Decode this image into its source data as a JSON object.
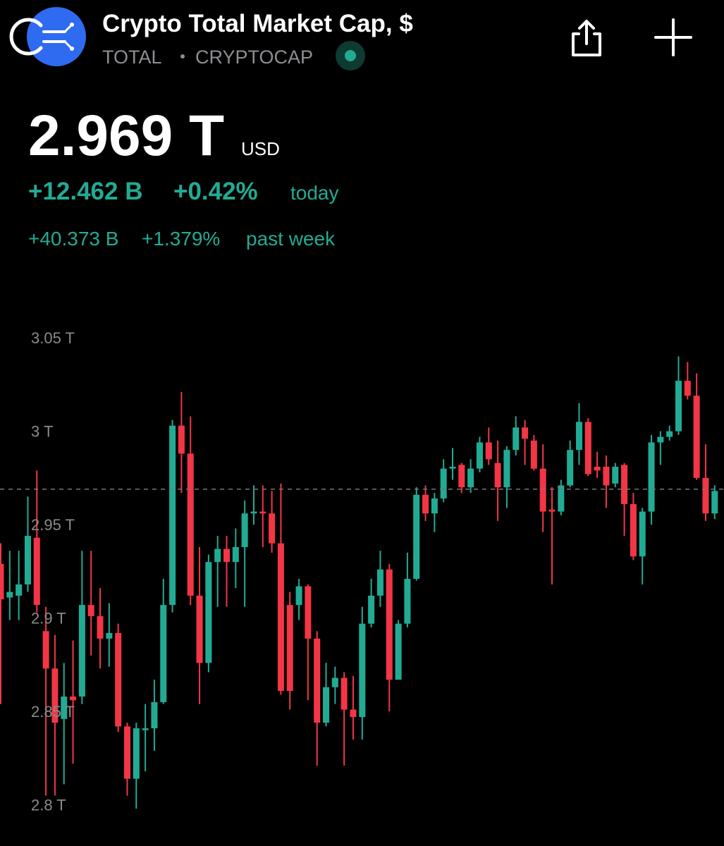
{
  "header": {
    "title": "Crypto Total Market Cap, $",
    "symbol": "TOTAL",
    "exchange": "CRYPTOCAP",
    "price": "2.969 T",
    "currency": "USD",
    "change_today": "+12.462 B",
    "change_today_pct": "+0.42%",
    "today_label": "today",
    "change_week": "+40.373 B",
    "change_week_pct": "+1.379%",
    "week_label": "past week"
  },
  "chart_data": {
    "type": "candlestick",
    "up_color": "#22ab94",
    "down_color": "#f23645",
    "ylim": [
      2.778,
      3.061
    ],
    "yticks": [
      {
        "value": 3.05,
        "label": "3.05 T"
      },
      {
        "value": 3,
        "label": "3 T"
      },
      {
        "value": 2.95,
        "label": "2.95 T"
      },
      {
        "value": 2.9,
        "label": "2.9 T"
      },
      {
        "value": 2.85,
        "label": "2.85 T"
      },
      {
        "value": 2.8,
        "label": "2.8 T"
      }
    ],
    "grid": false,
    "price_line": 2.969,
    "open": [
      2.929,
      2.911,
      2.912,
      2.918,
      2.943,
      2.893,
      2.873,
      2.846,
      2.858,
      2.858,
      2.907,
      2.901,
      2.889,
      2.892,
      2.842,
      2.814,
      2.84,
      2.841,
      2.855,
      2.907,
      3.003,
      2.988,
      2.912,
      2.876,
      2.93,
      2.937,
      2.93,
      2.938,
      2.956,
      2.957,
      2.956,
      2.94,
      2.907,
      2.907,
      2.917,
      2.889,
      2.844,
      2.863,
      2.868,
      2.851,
      2.847,
      2.897,
      2.912,
      2.926,
      2.867,
      2.897,
      2.921,
      2.966,
      2.956,
      2.964,
      2.98,
      2.982,
      2.97,
      2.98,
      2.994,
      2.983,
      2.97,
      2.99,
      3.002,
      2.995,
      2.98,
      2.958,
      2.957,
      2.971,
      2.99,
      3.005,
      2.981,
      2.981,
      2.972,
      2.982,
      2.961,
      2.933,
      2.957,
      2.994,
      2.997,
      3.0,
      3.027,
      3.019,
      2.975,
      2.956
    ],
    "high": [
      2.94,
      2.936,
      2.936,
      2.965,
      2.979,
      2.906,
      2.891,
      2.876,
      2.888,
      2.936,
      2.936,
      2.916,
      2.908,
      2.897,
      2.844,
      2.844,
      2.854,
      2.867,
      2.921,
      3.006,
      3.021,
      3.008,
      2.938,
      2.934,
      2.944,
      2.944,
      2.948,
      2.963,
      2.971,
      2.971,
      2.968,
      2.972,
      2.914,
      2.921,
      2.918,
      2.893,
      2.876,
      2.874,
      2.871,
      2.869,
      2.906,
      2.921,
      2.936,
      2.929,
      2.899,
      2.935,
      2.97,
      2.971,
      2.967,
      2.985,
      2.991,
      2.983,
      2.985,
      2.997,
      3.002,
      2.995,
      2.992,
      3.008,
      3.006,
      2.998,
      2.993,
      2.97,
      2.974,
      2.995,
      3.015,
      3.007,
      2.989,
      2.987,
      2.983,
      2.983,
      2.967,
      2.959,
      2.998,
      3.0,
      3.003,
      3.04,
      3.037,
      3.031,
      2.993,
      2.971
    ],
    "low": [
      2.854,
      2.899,
      2.899,
      2.914,
      2.903,
      2.805,
      2.805,
      2.811,
      2.822,
      2.854,
      2.88,
      2.873,
      2.874,
      2.839,
      2.805,
      2.798,
      2.818,
      2.829,
      2.854,
      2.903,
      2.967,
      2.907,
      2.854,
      2.871,
      2.906,
      2.906,
      2.916,
      2.906,
      2.95,
      2.938,
      2.935,
      2.859,
      2.851,
      2.899,
      2.856,
      2.821,
      2.842,
      2.854,
      2.821,
      2.835,
      2.835,
      2.895,
      2.906,
      2.85,
      2.867,
      2.895,
      2.92,
      2.952,
      2.946,
      2.962,
      2.974,
      2.967,
      2.967,
      2.978,
      2.982,
      2.952,
      2.959,
      2.987,
      2.982,
      2.979,
      2.946,
      2.918,
      2.955,
      2.97,
      2.982,
      2.976,
      2.975,
      2.959,
      2.97,
      2.944,
      2.931,
      2.918,
      2.95,
      2.982,
      2.995,
      2.998,
      3.017,
      2.974,
      2.952,
      2.953
    ],
    "close": [
      2.91,
      2.914,
      2.918,
      2.944,
      2.907,
      2.873,
      2.844,
      2.858,
      2.856,
      2.907,
      2.901,
      2.889,
      2.892,
      2.842,
      2.814,
      2.841,
      2.841,
      2.855,
      2.907,
      3.003,
      2.988,
      2.912,
      2.876,
      2.93,
      2.937,
      2.93,
      2.938,
      2.956,
      2.957,
      2.956,
      2.94,
      2.861,
      2.861,
      2.917,
      2.889,
      2.844,
      2.863,
      2.868,
      2.851,
      2.847,
      2.897,
      2.912,
      2.926,
      2.867,
      2.897,
      2.921,
      2.966,
      2.956,
      2.964,
      2.98,
      2.981,
      2.97,
      2.98,
      2.994,
      2.985,
      2.97,
      2.99,
      3.002,
      2.996,
      2.98,
      2.957,
      2.957,
      2.971,
      2.99,
      3.005,
      2.977,
      2.979,
      2.971,
      2.981,
      2.961,
      2.933,
      2.957,
      2.994,
      2.997,
      3.0,
      3.027,
      3.019,
      2.975,
      2.956,
      2.968
    ]
  }
}
